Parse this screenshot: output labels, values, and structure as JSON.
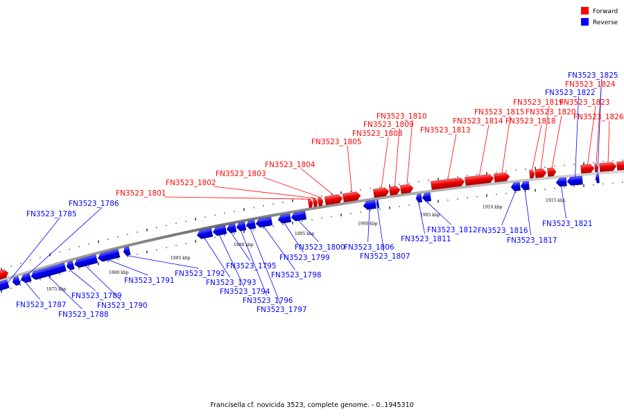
{
  "legend": [
    {
      "label": "Forward",
      "color": "#ff0000"
    },
    {
      "label": "Reverse",
      "color": "#0000ff"
    }
  ],
  "caption": "Francisella cf. novicida 3523, complete genome. - 0..1945310",
  "colors": {
    "forward": "#ff0000",
    "reverse": "#0000ff",
    "axis": "#808080"
  },
  "scale_labels": [
    "1875 kbp",
    "1880 kbp",
    "1885 kbp",
    "1890 kbp",
    "1895 kbp",
    "1900 kbp",
    "1905 kbp",
    "1910 kbp",
    "1915 kbp"
  ],
  "genes": [
    {
      "name": "FN3523_1785",
      "strand": "reverse"
    },
    {
      "name": "FN3523_1786",
      "strand": "reverse"
    },
    {
      "name": "FN3523_1787",
      "strand": "reverse"
    },
    {
      "name": "FN3523_1788",
      "strand": "reverse"
    },
    {
      "name": "FN3523_1789",
      "strand": "reverse"
    },
    {
      "name": "FN3523_1790",
      "strand": "reverse"
    },
    {
      "name": "FN3523_1791",
      "strand": "reverse"
    },
    {
      "name": "FN3523_1792",
      "strand": "reverse"
    },
    {
      "name": "FN3523_1793",
      "strand": "reverse"
    },
    {
      "name": "FN3523_1794",
      "strand": "reverse"
    },
    {
      "name": "FN3523_1795",
      "strand": "reverse"
    },
    {
      "name": "FN3523_1796",
      "strand": "reverse"
    },
    {
      "name": "FN3523_1797",
      "strand": "reverse"
    },
    {
      "name": "FN3523_1798",
      "strand": "reverse"
    },
    {
      "name": "FN3523_1799",
      "strand": "reverse"
    },
    {
      "name": "FN3523_1800",
      "strand": "reverse"
    },
    {
      "name": "FN3523_1801",
      "strand": "forward"
    },
    {
      "name": "FN3523_1802",
      "strand": "forward"
    },
    {
      "name": "FN3523_1803",
      "strand": "forward"
    },
    {
      "name": "FN3523_1804",
      "strand": "forward"
    },
    {
      "name": "FN3523_1805",
      "strand": "forward"
    },
    {
      "name": "FN3523_1806",
      "strand": "reverse"
    },
    {
      "name": "FN3523_1807",
      "strand": "reverse"
    },
    {
      "name": "FN3523_1808",
      "strand": "forward"
    },
    {
      "name": "FN3523_1809",
      "strand": "forward"
    },
    {
      "name": "FN3523_1810",
      "strand": "forward"
    },
    {
      "name": "FN3523_1811",
      "strand": "reverse"
    },
    {
      "name": "FN3523_1812",
      "strand": "reverse"
    },
    {
      "name": "FN3523_1813",
      "strand": "forward"
    },
    {
      "name": "FN3523_1814",
      "strand": "forward"
    },
    {
      "name": "FN3523_1815",
      "strand": "forward"
    },
    {
      "name": "FN3523_1816",
      "strand": "reverse"
    },
    {
      "name": "FN3523_1817",
      "strand": "reverse"
    },
    {
      "name": "FN3523_1818",
      "strand": "forward"
    },
    {
      "name": "FN3523_1819",
      "strand": "forward"
    },
    {
      "name": "FN3523_1820",
      "strand": "forward"
    },
    {
      "name": "FN3523_1821",
      "strand": "reverse"
    },
    {
      "name": "FN3523_1822",
      "strand": "reverse"
    },
    {
      "name": "FN3523_1823",
      "strand": "forward"
    },
    {
      "name": "FN3523_1824",
      "strand": "forward"
    },
    {
      "name": "FN3523_1825",
      "strand": "reverse"
    },
    {
      "name": "FN3523_1826",
      "strand": "forward"
    }
  ]
}
